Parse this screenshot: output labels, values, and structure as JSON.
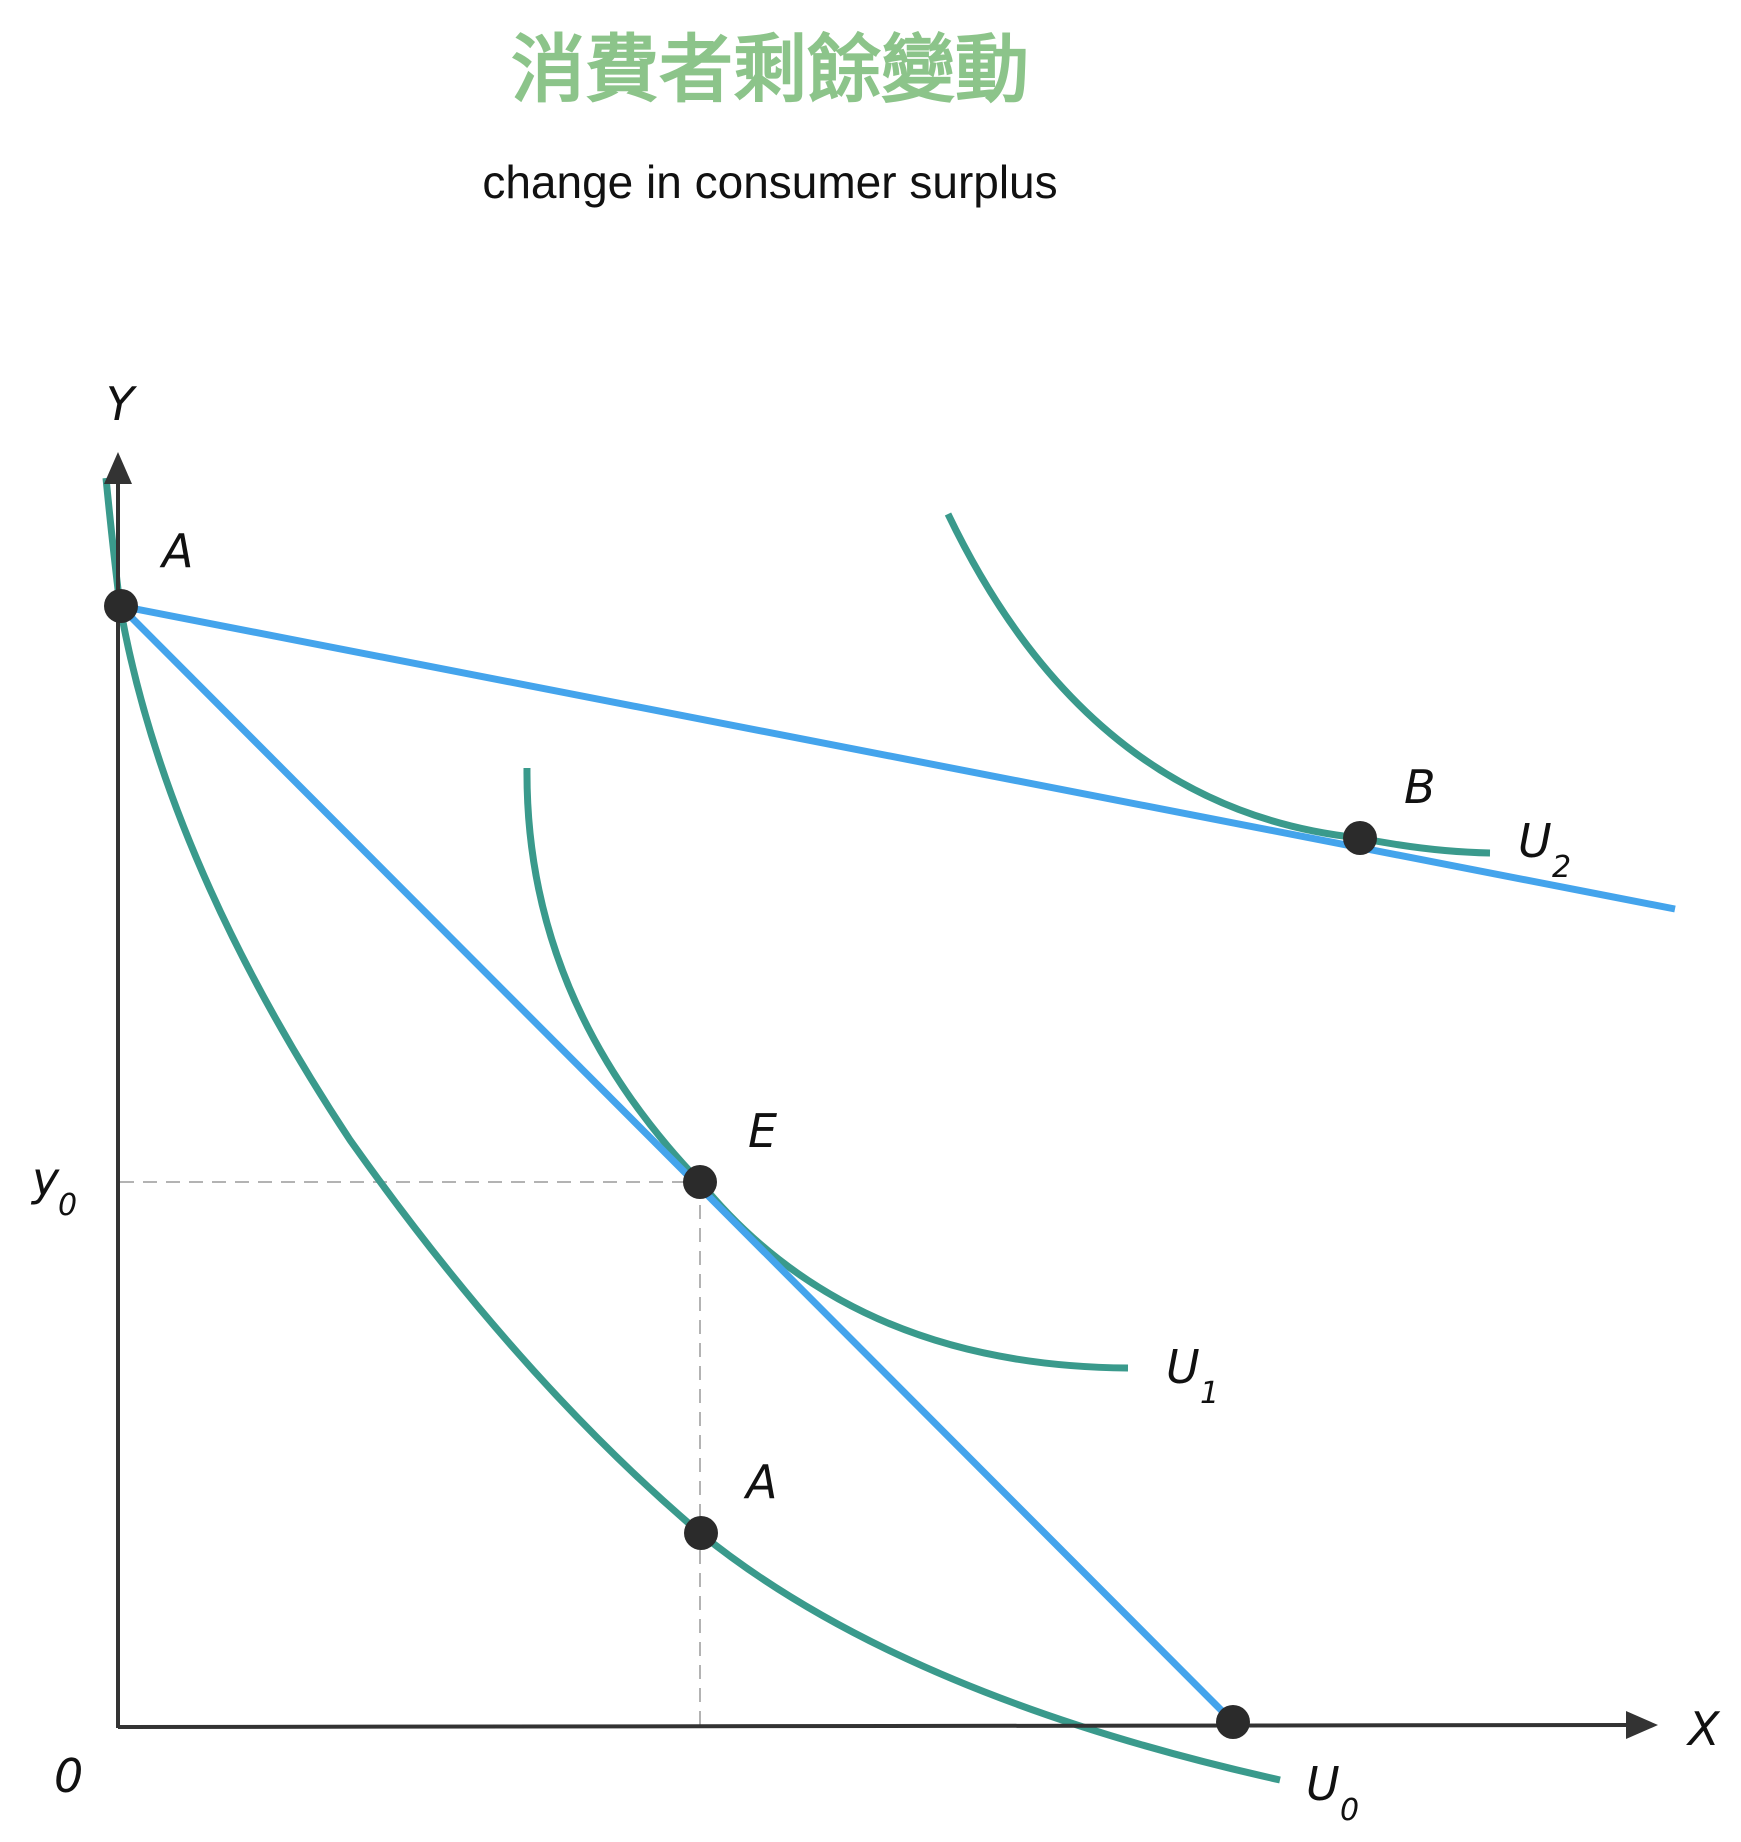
{
  "title": "消費者剩餘變動",
  "subtitle": "change in consumer surplus",
  "axes": {
    "y_label": "Y",
    "x_label": "X",
    "origin_label": "0",
    "y0_label": {
      "base": "y",
      "sub": "0"
    }
  },
  "points": [
    {
      "id": "A-top",
      "label": "A"
    },
    {
      "id": "B",
      "label": "B"
    },
    {
      "id": "E",
      "label": "E"
    },
    {
      "id": "A-bottom",
      "label": "A"
    },
    {
      "id": "x-intercept",
      "label": ""
    }
  ],
  "curves": [
    {
      "id": "U0",
      "base": "U",
      "sub": "0"
    },
    {
      "id": "U1",
      "base": "U",
      "sub": "1"
    },
    {
      "id": "U2",
      "base": "U",
      "sub": "2"
    }
  ],
  "colors": {
    "title": "#8cc48a",
    "indifference_curve": "#3a9a8c",
    "budget_line": "#44a4ec",
    "point": "#2b2b2b",
    "axis": "#333333"
  }
}
